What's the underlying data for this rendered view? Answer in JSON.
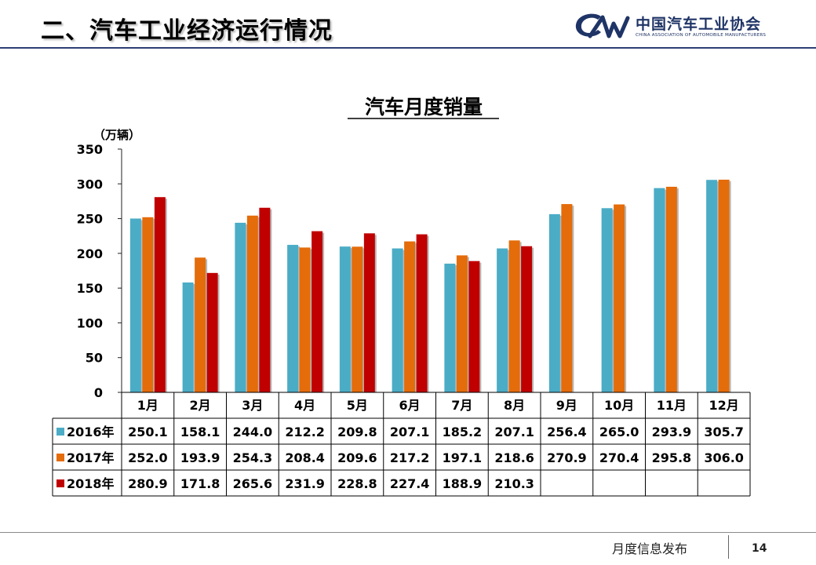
{
  "header": {
    "title": "二、汽车工业经济运行情况",
    "logo_cn": "中国汽车工业协会",
    "logo_en": "CHINA ASSOCIATION OF AUTOMOBILE MANUFACTURERS"
  },
  "footer": {
    "text": "月度信息发布",
    "page_number": "14"
  },
  "chart_data": {
    "type": "bar",
    "title": "汽车月度销量",
    "ylabel": "（万辆）",
    "ylim": [
      0,
      350
    ],
    "yticks": [
      0,
      50,
      100,
      150,
      200,
      250,
      300,
      350
    ],
    "grid": false,
    "legend": "data-table-left",
    "categories": [
      "1月",
      "2月",
      "3月",
      "4月",
      "5月",
      "6月",
      "7月",
      "8月",
      "9月",
      "10月",
      "11月",
      "12月"
    ],
    "series": [
      {
        "name": "2016年",
        "color": "#4bacc6",
        "values": [
          250.1,
          158.1,
          244.0,
          212.2,
          209.8,
          207.1,
          185.2,
          207.1,
          256.4,
          265.0,
          293.9,
          305.7
        ]
      },
      {
        "name": "2017年",
        "color": "#e46c0a",
        "values": [
          252.0,
          193.9,
          254.3,
          208.4,
          209.6,
          217.2,
          197.1,
          218.6,
          270.9,
          270.4,
          295.8,
          306.0
        ]
      },
      {
        "name": "2018年",
        "color": "#c00000",
        "values": [
          280.9,
          171.8,
          265.6,
          231.9,
          228.8,
          227.4,
          188.9,
          210.3,
          null,
          null,
          null,
          null
        ]
      }
    ]
  }
}
